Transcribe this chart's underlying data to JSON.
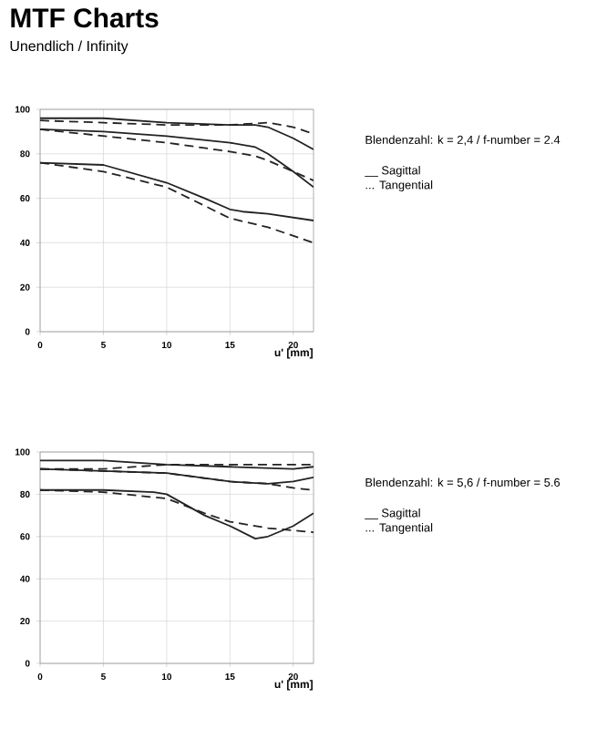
{
  "chart_data": [
    {
      "type": "line",
      "title": "MTF Charts",
      "subtitle": "Unendlich / Infinity",
      "xlabel": "u' [mm]",
      "xlim": [
        0,
        21.6
      ],
      "ylim": [
        0,
        100
      ],
      "xticks": [
        0,
        5,
        10,
        15,
        20
      ],
      "yticks": [
        0,
        20,
        40,
        60,
        80,
        100
      ],
      "grid": true,
      "annotations": [
        "Blendenzahl: k = 2,4 / f-number = 2.4",
        "__ Sagittal",
        "... Tangential"
      ],
      "series": [
        {
          "color": "#222222",
          "line_style": "solid",
          "x": [
            0,
            5,
            10,
            15,
            17,
            18,
            20,
            21.6
          ],
          "values": [
            96,
            96,
            94,
            93,
            93,
            92,
            87,
            82
          ]
        },
        {
          "color": "#222222",
          "line_style": "dashed",
          "x": [
            0,
            5,
            10,
            15,
            18,
            20,
            21.6
          ],
          "values": [
            95,
            94,
            93,
            93,
            94,
            92,
            89
          ]
        },
        {
          "color": "#222222",
          "line_style": "solid",
          "x": [
            0,
            5,
            10,
            15,
            17,
            18,
            20,
            21.6
          ],
          "values": [
            91,
            90,
            88,
            85,
            83,
            80,
            72,
            65
          ]
        },
        {
          "color": "#222222",
          "line_style": "dashed",
          "x": [
            0,
            5,
            10,
            15,
            17,
            18,
            20,
            21.6
          ],
          "values": [
            91,
            88,
            85,
            81,
            79,
            77,
            72,
            68
          ]
        },
        {
          "color": "#222222",
          "line_style": "solid",
          "x": [
            0,
            5,
            10,
            13,
            15,
            16,
            18,
            21.6
          ],
          "values": [
            76,
            75,
            67,
            60,
            55,
            54,
            53,
            50
          ]
        },
        {
          "color": "#222222",
          "line_style": "dashed",
          "x": [
            0,
            5,
            10,
            15,
            18,
            21.6
          ],
          "values": [
            76,
            72,
            65,
            51,
            47,
            40
          ]
        }
      ]
    },
    {
      "type": "line",
      "xlabel": "u' [mm]",
      "xlim": [
        0,
        21.6
      ],
      "ylim": [
        0,
        100
      ],
      "xticks": [
        0,
        5,
        10,
        15,
        20
      ],
      "yticks": [
        0,
        20,
        40,
        60,
        80,
        100
      ],
      "grid": true,
      "annotations": [
        "Blendenzahl: k = 5,6 / f-number = 5.6",
        "__ Sagittal",
        "... Tangential"
      ],
      "series": [
        {
          "color": "#222222",
          "line_style": "solid",
          "x": [
            0,
            5,
            10,
            15,
            20,
            21.6
          ],
          "values": [
            96,
            96,
            94,
            93,
            92,
            93
          ]
        },
        {
          "color": "#222222",
          "line_style": "dashed",
          "x": [
            0,
            5,
            10,
            15,
            20,
            21.6
          ],
          "values": [
            92,
            92,
            94,
            94,
            94,
            94
          ]
        },
        {
          "color": "#222222",
          "line_style": "solid",
          "x": [
            0,
            5,
            10,
            15,
            18,
            20,
            21.6
          ],
          "values": [
            92,
            91,
            90,
            86,
            85,
            86,
            88
          ]
        },
        {
          "color": "#222222",
          "line_style": "dashed",
          "x": [
            0,
            5,
            10,
            15,
            18,
            20,
            21.6
          ],
          "values": [
            92,
            91,
            90,
            86,
            85,
            83,
            82
          ]
        },
        {
          "color": "#222222",
          "line_style": "solid",
          "x": [
            0,
            5,
            9,
            10,
            13,
            15,
            17,
            18,
            20,
            21.6
          ],
          "values": [
            82,
            82,
            81,
            80,
            70,
            65,
            59,
            60,
            65,
            71
          ]
        },
        {
          "color": "#222222",
          "line_style": "dashed",
          "x": [
            0,
            5,
            10,
            13,
            15,
            18,
            21.6
          ],
          "values": [
            82,
            81,
            78,
            71,
            67,
            64,
            62
          ]
        }
      ]
    }
  ]
}
